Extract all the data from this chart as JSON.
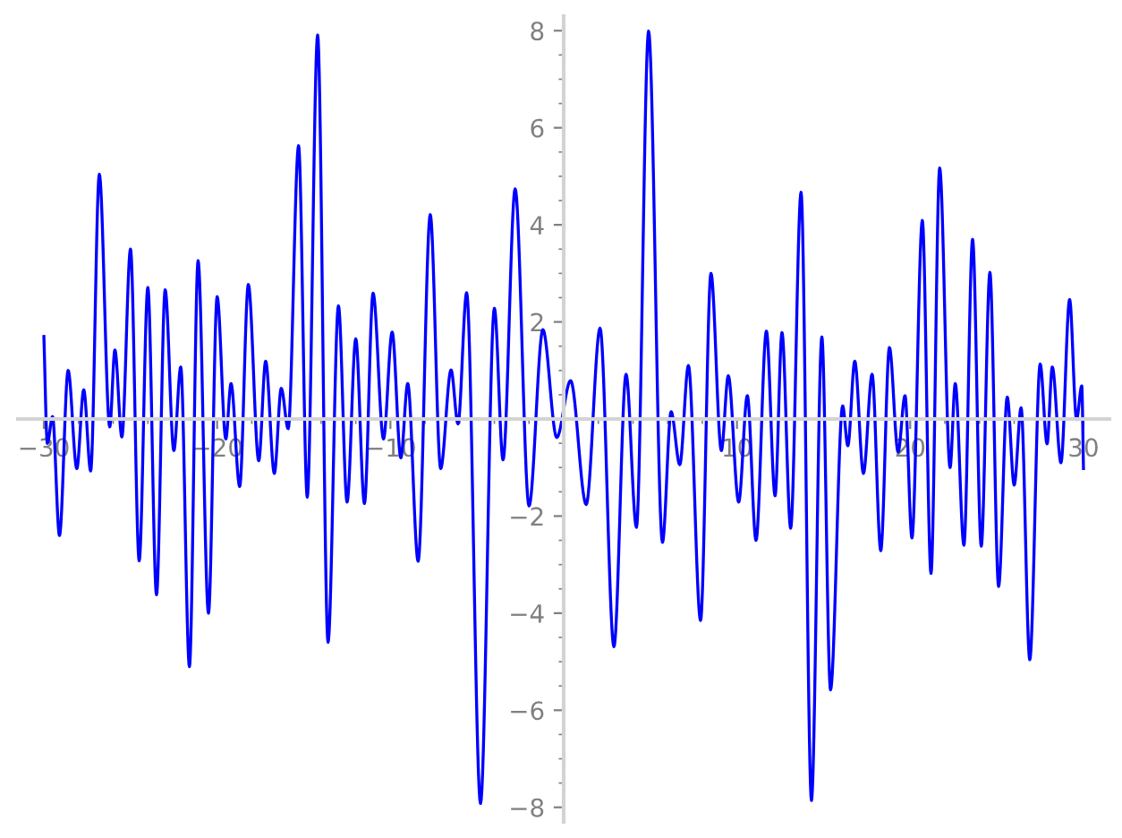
{
  "chart_data": {
    "type": "line",
    "xlim": [
      -31.5,
      31.5
    ],
    "ylim": [
      -8.3,
      8.3
    ],
    "xticks": [
      {
        "value": -30,
        "label": "−30"
      },
      {
        "value": -20,
        "label": "−20"
      },
      {
        "value": -10,
        "label": "−10"
      },
      10,
      20,
      30
    ],
    "yticks": [
      {
        "value": -8,
        "label": "−8"
      },
      {
        "value": -6,
        "label": "−6"
      },
      {
        "value": -4,
        "label": "−4"
      },
      {
        "value": -2,
        "label": "−2"
      },
      2,
      4,
      6,
      8
    ],
    "grid": false,
    "marker": "none",
    "line_style": "solid",
    "series": [
      {
        "color": "#0000ff",
        "x": [
          -30.0,
          -29.8,
          -29.5,
          -29.1,
          -28.6,
          -28.1,
          -27.7,
          -27.3,
          -26.8,
          -26.2,
          -25.9,
          -25.5,
          -25.0,
          -24.5,
          -24.0,
          -23.5,
          -23.0,
          -22.5,
          -22.1,
          -21.6,
          -21.1,
          -20.5,
          -20.0,
          -19.5,
          -19.2,
          -18.7,
          -18.2,
          -17.6,
          -17.2,
          -16.7,
          -16.3,
          -15.9,
          -15.3,
          -14.8,
          -14.2,
          -13.6,
          -13.0,
          -12.5,
          -12.0,
          -11.5,
          -11.0,
          -10.4,
          -9.9,
          -9.4,
          -9.0,
          -8.4,
          -7.7,
          -7.1,
          -6.5,
          -6.1,
          -5.6,
          -4.8,
          -4.0,
          -3.5,
          -2.8,
          -2.0,
          -1.2,
          -0.4,
          0.4,
          1.3,
          2.1,
          2.9,
          3.6,
          4.2,
          4.9,
          5.7,
          6.2,
          6.7,
          7.2,
          7.9,
          8.5,
          9.1,
          9.5,
          10.1,
          10.6,
          11.1,
          11.7,
          12.2,
          12.6,
          13.1,
          13.7,
          14.3,
          14.9,
          15.4,
          16.1,
          16.4,
          16.8,
          17.3,
          17.8,
          18.3,
          18.8,
          19.3,
          19.7,
          20.1,
          20.7,
          21.2,
          21.7,
          22.3,
          22.6,
          23.1,
          23.6,
          24.1,
          24.6,
          25.1,
          25.6,
          26.0,
          26.4,
          26.9,
          27.5,
          27.9,
          28.2,
          28.7,
          29.2,
          29.6,
          29.9,
          30.0
        ],
        "values": [
          1.7,
          -0.5,
          0.05,
          -2.4,
          1.0,
          -1.02,
          0.6,
          -1.07,
          5.04,
          -0.16,
          1.42,
          -0.37,
          3.5,
          -2.92,
          2.71,
          -3.62,
          2.66,
          -0.65,
          1.07,
          -5.1,
          3.26,
          -4.0,
          2.52,
          -0.41,
          0.73,
          -1.39,
          2.77,
          -0.86,
          1.19,
          -1.12,
          0.63,
          -0.2,
          5.63,
          -1.61,
          7.91,
          -4.6,
          2.33,
          -1.71,
          1.65,
          -1.74,
          2.59,
          -0.41,
          1.79,
          -0.8,
          0.73,
          -2.93,
          4.21,
          -1.02,
          1.01,
          -0.1,
          2.6,
          -7.92,
          2.28,
          -0.84,
          4.74,
          -1.79,
          1.84,
          -0.38,
          0.79,
          -1.76,
          1.87,
          -4.69,
          0.92,
          -2.23,
          7.99,
          -2.54,
          0.15,
          -0.94,
          1.1,
          -4.15,
          3.0,
          -0.65,
          0.89,
          -1.71,
          0.48,
          -2.5,
          1.81,
          -1.58,
          1.78,
          -2.25,
          4.67,
          -7.86,
          1.69,
          -5.58,
          0.27,
          -0.55,
          1.19,
          -1.12,
          0.92,
          -2.71,
          1.47,
          -0.68,
          0.48,
          -2.45,
          4.09,
          -3.18,
          5.17,
          -1.0,
          0.73,
          -2.6,
          3.7,
          -2.62,
          3.02,
          -3.45,
          0.45,
          -1.36,
          0.23,
          -4.96,
          1.13,
          -0.51,
          1.07,
          -0.9,
          2.46,
          -0.01,
          0.68,
          -1.02
        ]
      }
    ]
  }
}
